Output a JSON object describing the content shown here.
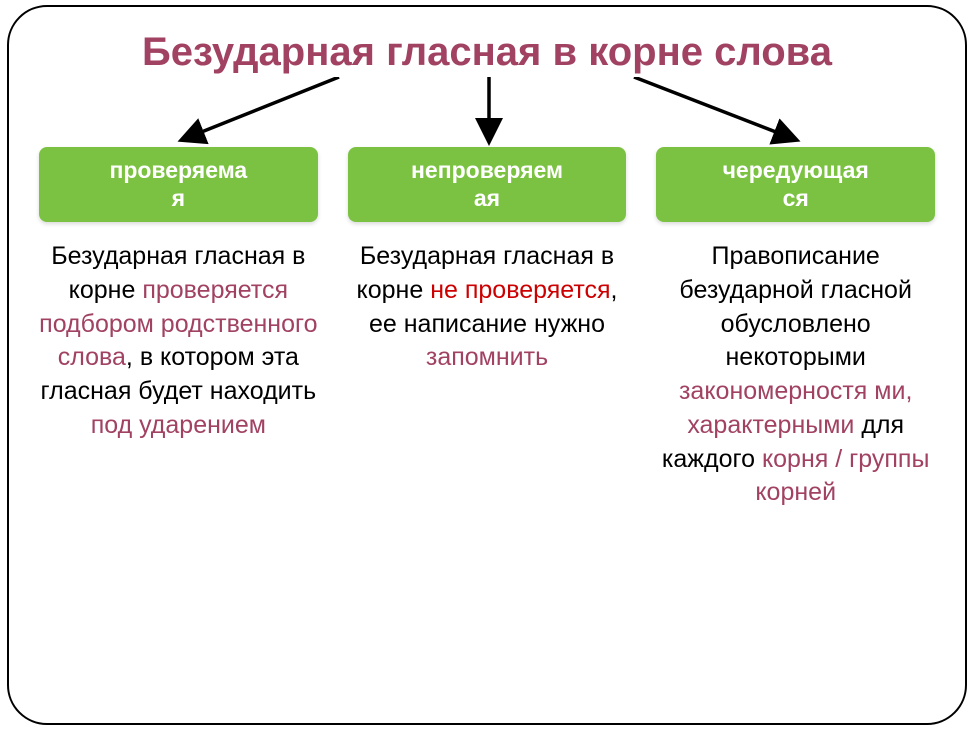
{
  "title": {
    "text": "Безударная гласная в корне слова",
    "color": "#a14263",
    "fontsize": 40
  },
  "arrows": {
    "stroke": "#000000",
    "stroke_width": 3.5,
    "paths": [
      "M 300 0 L 145 62",
      "M 450 0 L 450 62",
      "M 595 0 L 755 62"
    ]
  },
  "columns": [
    {
      "pill": {
        "line1": "проверяема",
        "line2": "я",
        "bg": "#7cc242",
        "fontsize": 23
      },
      "desc": {
        "fontsize": 25,
        "segments": [
          {
            "t": "Безударная гласная в корне ",
            "c": "#000000"
          },
          {
            "t": "проверяется подбором родственного слова",
            "c": "#a14263"
          },
          {
            "t": ", в котором эта гласная будет находить ",
            "c": "#000000"
          },
          {
            "t": "под ударением",
            "c": "#a14263"
          }
        ]
      }
    },
    {
      "pill": {
        "line1": "непроверяем",
        "line2": "ая",
        "bg": "#7cc242",
        "fontsize": 23
      },
      "desc": {
        "fontsize": 25,
        "segments": [
          {
            "t": "Безударная гласная в корне ",
            "c": "#000000"
          },
          {
            "t": "не проверяется",
            "c": "#cc0000"
          },
          {
            "t": ", ее написание нужно ",
            "c": "#000000"
          },
          {
            "t": "запомнить",
            "c": "#a14263"
          }
        ]
      }
    },
    {
      "pill": {
        "line1": "чередующая",
        "line2": "ся",
        "bg": "#7cc242",
        "fontsize": 23
      },
      "desc": {
        "fontsize": 25,
        "segments": [
          {
            "t": "Правописание безударной гласной обусловлено некоторыми ",
            "c": "#000000"
          },
          {
            "t": "закономерностя ми, характерными",
            "c": "#a14263"
          },
          {
            "t": " для каждого ",
            "c": "#000000"
          },
          {
            "t": "корня / группы корней",
            "c": "#a14263"
          }
        ]
      }
    }
  ]
}
